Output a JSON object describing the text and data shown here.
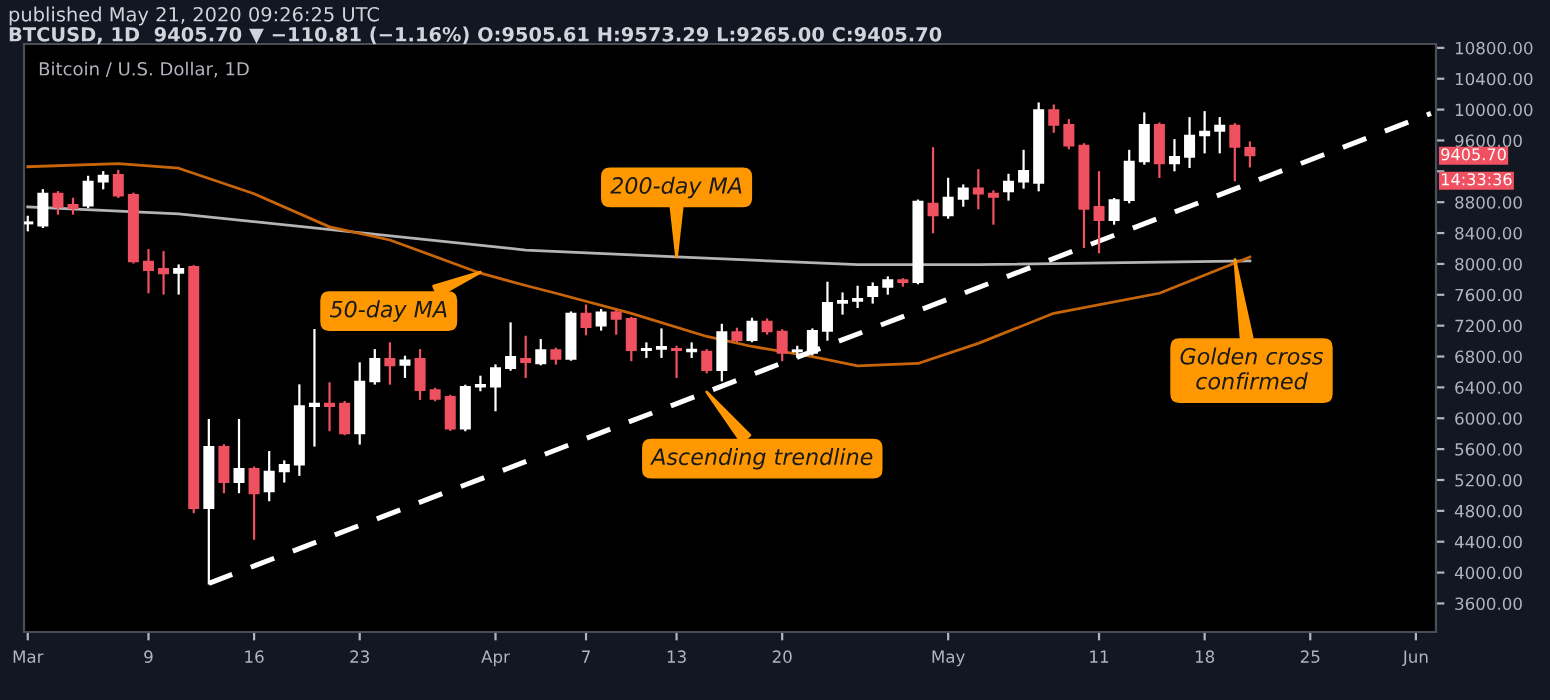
{
  "chart_data": {
    "type": "candlestick",
    "title": "published May 21, 2020 09:26:25 UTC",
    "subtitle": "BTCUSD, 1D  9405.70 ▼ −110.81 (−1.16%) O:9505.61 H:9573.29 L:9265.00 C:9405.70",
    "annotations": [
      "Bitcoin / U.S. Dollar, 1D",
      {
        "text": "200-day MA",
        "x": "2020-04-13",
        "y": 8091
      },
      {
        "text": "50-day MA",
        "x": "2020-03-31",
        "y": 7893
      },
      {
        "text": "Ascending trendline",
        "x": "2020-04-15",
        "y": 6340
      },
      {
        "text": "Golden cross\nconfirmed",
        "x": "2020-05-20",
        "y": 8057
      },
      "9405.70",
      "14:33:36"
    ],
    "x": [
      "2020-03-01",
      "2020-03-02",
      "2020-03-03",
      "2020-03-04",
      "2020-03-05",
      "2020-03-06",
      "2020-03-07",
      "2020-03-08",
      "2020-03-09",
      "2020-03-10",
      "2020-03-11",
      "2020-03-12",
      "2020-03-13",
      "2020-03-14",
      "2020-03-15",
      "2020-03-16",
      "2020-03-17",
      "2020-03-18",
      "2020-03-19",
      "2020-03-20",
      "2020-03-21",
      "2020-03-22",
      "2020-03-23",
      "2020-03-24",
      "2020-03-25",
      "2020-03-26",
      "2020-03-27",
      "2020-03-28",
      "2020-03-29",
      "2020-03-30",
      "2020-03-31",
      "2020-04-01",
      "2020-04-02",
      "2020-04-03",
      "2020-04-04",
      "2020-04-05",
      "2020-04-06",
      "2020-04-07",
      "2020-04-08",
      "2020-04-09",
      "2020-04-10",
      "2020-04-11",
      "2020-04-12",
      "2020-04-13",
      "2020-04-14",
      "2020-04-15",
      "2020-04-16",
      "2020-04-17",
      "2020-04-18",
      "2020-04-19",
      "2020-04-20",
      "2020-04-21",
      "2020-04-22",
      "2020-04-23",
      "2020-04-24",
      "2020-04-25",
      "2020-04-26",
      "2020-04-27",
      "2020-04-28",
      "2020-04-29",
      "2020-04-30",
      "2020-05-01",
      "2020-05-02",
      "2020-05-03",
      "2020-05-04",
      "2020-05-05",
      "2020-05-06",
      "2020-05-07",
      "2020-05-08",
      "2020-05-09",
      "2020-05-10",
      "2020-05-11",
      "2020-05-12",
      "2020-05-13",
      "2020-05-14",
      "2020-05-15",
      "2020-05-16",
      "2020-05-17",
      "2020-05-18",
      "2020-05-19",
      "2020-05-20",
      "2020-05-21"
    ],
    "ohlc": [
      [
        8523,
        8610,
        8437,
        8540
      ],
      [
        8497,
        8955,
        8480,
        8912
      ],
      [
        8912,
        8930,
        8653,
        8740
      ],
      [
        8765,
        8843,
        8653,
        8722
      ],
      [
        8756,
        9128,
        8739,
        9067
      ],
      [
        9067,
        9188,
        8981,
        9145
      ],
      [
        9154,
        9205,
        8870,
        8886
      ],
      [
        8895,
        8910,
        8020,
        8031
      ],
      [
        8031,
        8178,
        7634,
        7919
      ],
      [
        7936,
        8152,
        7617,
        7876
      ],
      [
        7885,
        7979,
        7617,
        7936
      ],
      [
        7962,
        7970,
        4784,
        4836
      ],
      [
        4836,
        5976,
        3860,
        5630
      ],
      [
        5630,
        5650,
        5043,
        5172
      ],
      [
        5172,
        5976,
        5043,
        5345
      ],
      [
        5345,
        5360,
        4439,
        5026
      ],
      [
        5051,
        5561,
        4939,
        5310
      ],
      [
        5310,
        5440,
        5181,
        5397
      ],
      [
        5397,
        6425,
        5268,
        6157
      ],
      [
        6157,
        7142,
        5647,
        6191
      ],
      [
        6191,
        6451,
        5846,
        6157
      ],
      [
        6191,
        6210,
        5795,
        5803
      ],
      [
        5803,
        6710,
        5673,
        6476
      ],
      [
        6476,
        6882,
        6450,
        6770
      ],
      [
        6770,
        6969,
        6450,
        6684
      ],
      [
        6690,
        6796,
        6537,
        6750
      ],
      [
        6770,
        6882,
        6252,
        6364
      ],
      [
        6364,
        6380,
        6235,
        6252
      ],
      [
        6278,
        6290,
        5850,
        5864
      ],
      [
        5864,
        6420,
        5846,
        6408
      ],
      [
        6408,
        6537,
        6364,
        6434
      ],
      [
        6408,
        6684,
        6105,
        6650
      ],
      [
        6650,
        7228,
        6630,
        6796
      ],
      [
        6770,
        7055,
        6537,
        6727
      ],
      [
        6710,
        7012,
        6700,
        6882
      ],
      [
        6882,
        6900,
        6710,
        6770
      ],
      [
        6770,
        7370,
        6760,
        7357
      ],
      [
        7357,
        7460,
        7090,
        7180
      ],
      [
        7200,
        7400,
        7150,
        7374
      ],
      [
        7374,
        7390,
        7098,
        7288
      ],
      [
        7288,
        7300,
        6753,
        6882
      ],
      [
        6882,
        6969,
        6796,
        6900
      ],
      [
        6900,
        7150,
        6796,
        6925
      ],
      [
        6900,
        6925,
        6537,
        6882
      ],
      [
        6865,
        6969,
        6796,
        6890
      ],
      [
        6865,
        6882,
        6597,
        6623
      ],
      [
        6623,
        7210,
        6493,
        7116
      ],
      [
        7116,
        7159,
        7000,
        7012
      ],
      [
        7012,
        7288,
        7000,
        7254
      ],
      [
        7254,
        7279,
        7098,
        7124
      ],
      [
        7124,
        7140,
        6753,
        6848
      ],
      [
        6865,
        6925,
        6796,
        6882
      ],
      [
        6848,
        7150,
        6830,
        7133
      ],
      [
        7133,
        7755,
        7020,
        7496
      ],
      [
        7496,
        7616,
        7357,
        7522
      ],
      [
        7522,
        7703,
        7443,
        7548
      ],
      [
        7582,
        7746,
        7500,
        7703
      ],
      [
        7703,
        7824,
        7616,
        7789
      ],
      [
        7789,
        7800,
        7720,
        7763
      ],
      [
        7763,
        8820,
        7750,
        8808
      ],
      [
        8782,
        9499,
        8412,
        8627
      ],
      [
        8627,
        9102,
        8600,
        8860
      ],
      [
        8843,
        9016,
        8756,
        8981
      ],
      [
        8981,
        9214,
        8722,
        8912
      ],
      [
        8912,
        8940,
        8523,
        8869
      ],
      [
        8938,
        9154,
        8835,
        9067
      ],
      [
        9067,
        9464,
        8990,
        9205
      ],
      [
        9050,
        10078,
        8955,
        9992
      ],
      [
        9992,
        10052,
        9714,
        9802
      ],
      [
        9802,
        9862,
        9500,
        9534
      ],
      [
        9534,
        9550,
        8221,
        8713
      ],
      [
        8740,
        9188,
        8152,
        8567
      ],
      [
        8567,
        8840,
        8523,
        8826
      ],
      [
        8826,
        9464,
        8800,
        9327
      ],
      [
        9327,
        9949,
        9300,
        9802
      ],
      [
        9802,
        9819,
        9128,
        9301
      ],
      [
        9301,
        9603,
        9214,
        9387
      ],
      [
        9387,
        9888,
        9257,
        9664
      ],
      [
        9664,
        9966,
        9447,
        9715
      ],
      [
        9724,
        9888,
        9447,
        9793
      ],
      [
        9793,
        9810,
        9085,
        9516
      ],
      [
        9505.61,
        9573.29,
        9265.0,
        9405.7
      ]
    ],
    "colors": [
      "#ffffff",
      "#ffffff",
      "#ef5161",
      "#ef5161",
      "#ffffff",
      "#ffffff",
      "#ef5161",
      "#ef5161",
      "#ef5161",
      "#ef5161",
      "#ffffff",
      "#ef5161",
      "#ffffff",
      "#ef5161",
      "#ffffff",
      "#ef5161",
      "#ffffff",
      "#ffffff",
      "#ffffff",
      "#ffffff",
      "#ef5161",
      "#ef5161",
      "#ffffff",
      "#ffffff",
      "#ef5161",
      "#ffffff",
      "#ef5161",
      "#ef5161",
      "#ef5161",
      "#ffffff",
      "#ffffff",
      "#ffffff",
      "#ffffff",
      "#ef5161",
      "#ffffff",
      "#ef5161",
      "#ffffff",
      "#ef5161",
      "#ffffff",
      "#ef5161",
      "#ef5161",
      "#ffffff",
      "#ffffff",
      "#ef5161",
      "#ffffff",
      "#ef5161",
      "#ffffff",
      "#ef5161",
      "#ffffff",
      "#ef5161",
      "#ef5161",
      "#ffffff",
      "#ffffff",
      "#ffffff",
      "#ffffff",
      "#ffffff",
      "#ffffff",
      "#ffffff",
      "#ef5161",
      "#ffffff",
      "#ef5161",
      "#ffffff",
      "#ffffff",
      "#ef5161",
      "#ef5161",
      "#ffffff",
      "#ffffff",
      "#ffffff",
      "#ef5161",
      "#ef5161",
      "#ef5161",
      "#ef5161",
      "#ffffff",
      "#ffffff",
      "#ffffff",
      "#ef5161",
      "#ffffff",
      "#ffffff",
      "#ffffff",
      "#ffffff",
      "#ef5161",
      "#ef5161"
    ],
    "series": [
      {
        "type": "line",
        "color": "#b4b4b4",
        "x": [
          "2020-03-01",
          "2020-03-11",
          "2020-04-03",
          "2020-04-13",
          "2020-04-25",
          "2020-05-03",
          "2020-05-21"
        ],
        "values": [
          8740,
          8650,
          8180,
          8090,
          7990,
          7990,
          8040
        ]
      },
      {
        "type": "line",
        "color": "#c8650a",
        "x": [
          "2020-03-01",
          "2020-03-07",
          "2020-03-11",
          "2020-03-16",
          "2020-03-21",
          "2020-03-25",
          "2020-03-31",
          "2020-04-03",
          "2020-04-05",
          "2020-04-10",
          "2020-04-15",
          "2020-04-18",
          "2020-04-22",
          "2020-04-25",
          "2020-04-29",
          "2020-05-03",
          "2020-05-08",
          "2020-05-15",
          "2020-05-21"
        ],
        "values": [
          9260,
          9300,
          9240,
          8910,
          8480,
          8310,
          7880,
          7720,
          7620,
          7360,
          7060,
          6930,
          6800,
          6680,
          6710,
          6970,
          7360,
          7620,
          8090
        ]
      },
      {
        "type": "line",
        "color": "#ffffff",
        "line_style": "dashed",
        "x": [
          "2020-03-13",
          "2020-04-15",
          "2020-06-02"
        ],
        "values": [
          3860,
          6340,
          9950
        ]
      }
    ],
    "xlim": [
      "2020-02-29T18:00",
      "2020-06-02T08:00"
    ],
    "ylim": [
      3230,
      10850
    ],
    "xticks": [
      {
        "value": "2020-03-01",
        "label": "Mar"
      },
      {
        "value": "2020-03-09",
        "label": "9"
      },
      {
        "value": "2020-03-16",
        "label": "16"
      },
      {
        "value": "2020-03-23",
        "label": "23"
      },
      {
        "value": "2020-04-01",
        "label": "Apr"
      },
      {
        "value": "2020-04-07",
        "label": "7"
      },
      {
        "value": "2020-04-13",
        "label": "13"
      },
      {
        "value": "2020-04-20",
        "label": "20"
      },
      {
        "value": "2020-05-01",
        "label": "May"
      },
      {
        "value": "2020-05-11",
        "label": "11"
      },
      {
        "value": "2020-05-18",
        "label": "18"
      },
      {
        "value": "2020-05-25",
        "label": "25"
      },
      {
        "value": "2020-06-01",
        "label": "Jun"
      }
    ],
    "yticks": [
      {
        "value": 3600,
        "label": "3600.00"
      },
      {
        "value": 4000,
        "label": "4000.00"
      },
      {
        "value": 4400,
        "label": "4400.00"
      },
      {
        "value": 4800,
        "label": "4800.00"
      },
      {
        "value": 5200,
        "label": "5200.00"
      },
      {
        "value": 5600,
        "label": "5600.00"
      },
      {
        "value": 6000,
        "label": "6000.00"
      },
      {
        "value": 6400,
        "label": "6400.00"
      },
      {
        "value": 6800,
        "label": "6800.00"
      },
      {
        "value": 7200,
        "label": "7200.00"
      },
      {
        "value": 7600,
        "label": "7600.00"
      },
      {
        "value": 8000,
        "label": "8000.00"
      },
      {
        "value": 8400,
        "label": "8400.00"
      },
      {
        "value": 8800,
        "label": "8800.00"
      },
      {
        "value": 9200,
        "label": null
      },
      {
        "value": 9600,
        "label": "9600.00"
      },
      {
        "value": 10000,
        "label": "10000.00"
      },
      {
        "value": 10400,
        "label": "10400.00"
      },
      {
        "value": 10800,
        "label": "10800.00"
      }
    ]
  }
}
